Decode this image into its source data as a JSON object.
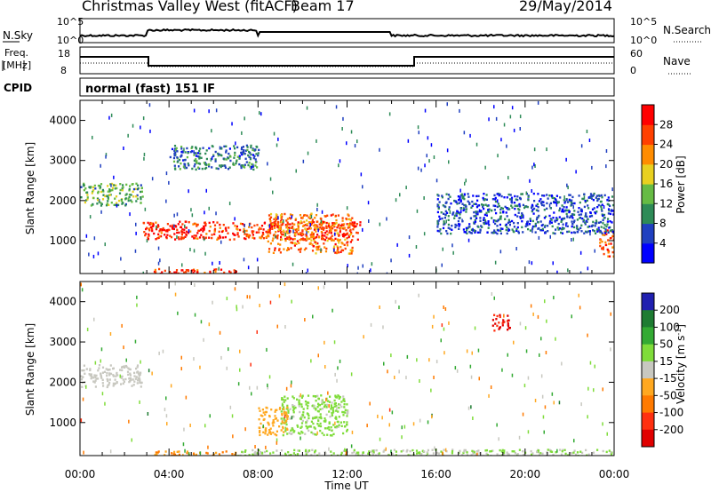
{
  "header": {
    "station": "Christmas Valley West (fitACF)",
    "beam": "Beam 17",
    "date": "29/May/2014"
  },
  "strip": {
    "nsky_label": "N.Sky",
    "nsky_ticks": [
      "10^5",
      "10^0"
    ],
    "nsearch_label": "N.Search",
    "freq_label_1": "Freq.",
    "freq_label_2": "[MHz]",
    "freq_ticks": [
      "18",
      "8"
    ],
    "nave_ticks": [
      "60",
      "0"
    ],
    "nave_label": "Nave",
    "cpid_label": "CPID",
    "cpid_value": "normal (fast) 151 IF"
  },
  "chart_data": [
    {
      "type": "heatmap",
      "title": "",
      "xlabel": "Time UT",
      "ylabel": "Slant Range [km]",
      "x_ticks": [
        "00:00",
        "04:00",
        "08:00",
        "12:00",
        "16:00",
        "20:00",
        "00:00"
      ],
      "xlim_hours": [
        0,
        24
      ],
      "y_ticks": [
        1000,
        2000,
        3000,
        4000
      ],
      "ylim": [
        180,
        4500
      ],
      "colorbar": {
        "label": "Power [dB]",
        "ticks": [
          4,
          8,
          12,
          16,
          20,
          24,
          28
        ],
        "range": [
          0,
          30
        ],
        "colors": [
          "#0000ff",
          "#2040c0",
          "#2e8b57",
          "#66bb44",
          "#e8d020",
          "#ff8c00",
          "#ff4000",
          "#ff0000"
        ]
      },
      "features": [
        {
          "t": [
            0.0,
            2.8
          ],
          "range": [
            1900,
            2450
          ],
          "level_db": 12
        },
        {
          "t": [
            2.8,
            12.6
          ],
          "range": [
            1050,
            1500
          ],
          "level_db": 26
        },
        {
          "t": [
            8.4,
            12.2
          ],
          "range": [
            700,
            1700
          ],
          "level_db": 22
        },
        {
          "t": [
            3.3,
            7.0
          ],
          "range": [
            180,
            320
          ],
          "level_db": 26
        },
        {
          "t": [
            4.0,
            8.0
          ],
          "range": [
            2800,
            3400
          ],
          "level_db": 8
        },
        {
          "t": [
            23.3,
            24.0
          ],
          "range": [
            600,
            1300
          ],
          "level_db": 24
        },
        {
          "t": [
            16.0,
            24.0
          ],
          "range": [
            1200,
            2200
          ],
          "level_db": 6
        }
      ]
    },
    {
      "type": "heatmap",
      "title": "",
      "xlabel": "Time UT",
      "ylabel": "Slant Range [km]",
      "x_ticks": [
        "00:00",
        "04:00",
        "08:00",
        "12:00",
        "16:00",
        "20:00",
        "00:00"
      ],
      "xlim_hours": [
        0,
        24
      ],
      "y_ticks": [
        1000,
        2000,
        3000,
        4000
      ],
      "ylim": [
        180,
        4500
      ],
      "colorbar": {
        "label": "Velocity [m s^-1]",
        "ticks": [
          200,
          100,
          50,
          15,
          -15,
          -50,
          -100,
          -200
        ],
        "range": [
          -250,
          250
        ],
        "colors": [
          "#2020b0",
          "#1e7c32",
          "#33aa33",
          "#7fdc3a",
          "#c8c8c0",
          "#ffa820",
          "#ff7a00",
          "#ff3010",
          "#e00000"
        ]
      },
      "features": [
        {
          "t": [
            0.0,
            2.8
          ],
          "range": [
            1900,
            2450
          ],
          "velocity": 0
        },
        {
          "t": [
            9.0,
            12.0
          ],
          "range": [
            700,
            1700
          ],
          "velocity": 40
        },
        {
          "t": [
            8.0,
            9.3
          ],
          "range": [
            700,
            1400
          ],
          "velocity": -60
        },
        {
          "t": [
            3.3,
            7.0
          ],
          "range": [
            180,
            320
          ],
          "velocity": -80
        },
        {
          "t": [
            7.0,
            24.0
          ],
          "range": [
            180,
            350
          ],
          "velocity": 30
        },
        {
          "t": [
            18.5,
            19.3
          ],
          "range": [
            3300,
            3700
          ],
          "velocity": -200
        }
      ]
    }
  ]
}
